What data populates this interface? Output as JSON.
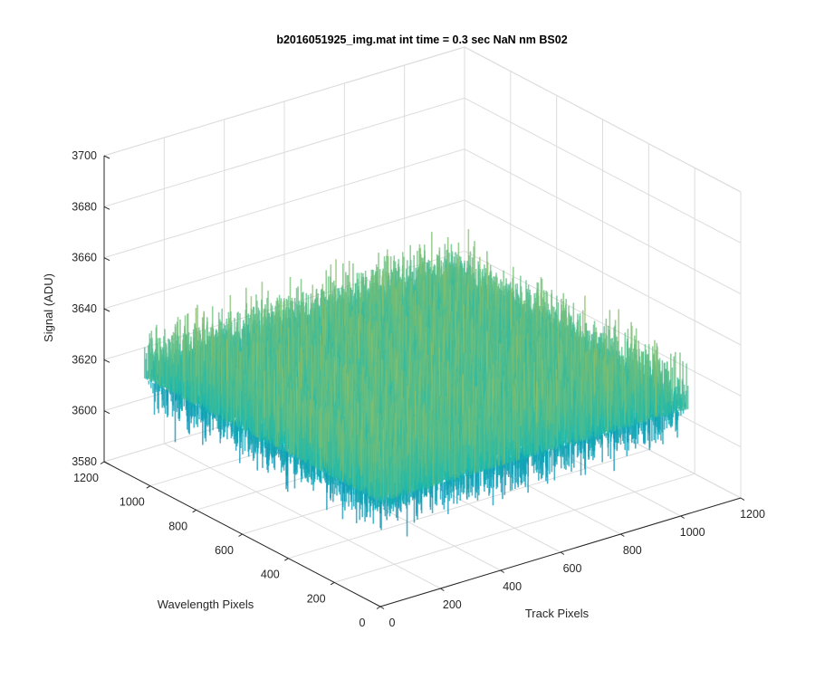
{
  "chart_data": {
    "type": "surface",
    "title": "b2016051925_img.mat int time = 0.3 sec  NaN nm BS02",
    "xlabel": "Track Pixels",
    "ylabel": "Wavelength Pixels",
    "zlabel": "Signal (ADU)",
    "xlim": [
      0,
      1200
    ],
    "ylim": [
      0,
      1200
    ],
    "zlim": [
      3580,
      3700
    ],
    "xticks": [
      0,
      200,
      400,
      600,
      800,
      1000,
      1200
    ],
    "yticks": [
      0,
      200,
      400,
      600,
      800,
      1000,
      1200
    ],
    "zticks": [
      3580,
      3600,
      3620,
      3640,
      3660,
      3680,
      3700
    ],
    "x_extent": [
      0,
      1024
    ],
    "y_extent": [
      0,
      1024
    ],
    "mean_signal": 3625,
    "signal_spread": 15,
    "grid": true,
    "colormap": "parula",
    "colors": {
      "low": "#0072bd",
      "mid": "#18b9b0",
      "high": "#d9c338",
      "grid": "#dcdcdc",
      "axis": "#262626"
    }
  }
}
